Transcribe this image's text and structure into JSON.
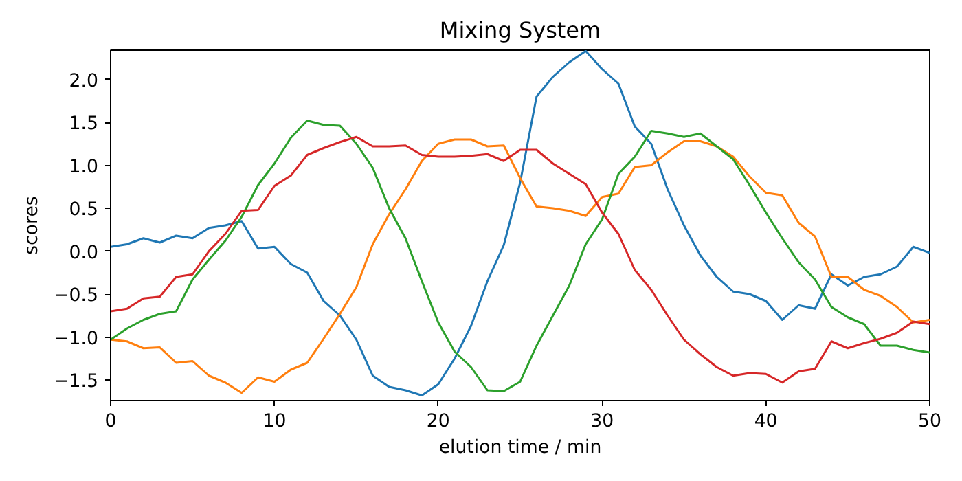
{
  "chart_data": {
    "type": "line",
    "title": "Mixing System",
    "xlabel": "elution time / min",
    "ylabel": "scores",
    "x": [
      0,
      1,
      2,
      3,
      4,
      5,
      6,
      7,
      8,
      9,
      10,
      11,
      12,
      13,
      14,
      15,
      16,
      17,
      18,
      19,
      20,
      21,
      22,
      23,
      24,
      25,
      26,
      27,
      28,
      29,
      30,
      31,
      32,
      33,
      34,
      35,
      36,
      37,
      38,
      39,
      40,
      41,
      42,
      43,
      44,
      45,
      46,
      47,
      48,
      49,
      50
    ],
    "series": [
      {
        "color": "#1f77b4",
        "values": [
          0.05,
          0.08,
          0.15,
          0.1,
          0.18,
          0.15,
          0.27,
          0.3,
          0.35,
          0.03,
          0.05,
          -0.15,
          -0.25,
          -0.58,
          -0.75,
          -1.03,
          -1.45,
          -1.58,
          -1.62,
          -1.68,
          -1.55,
          -1.25,
          -0.87,
          -0.35,
          0.07,
          0.8,
          1.8,
          2.03,
          2.2,
          2.33,
          2.12,
          1.95,
          1.45,
          1.25,
          0.72,
          0.3,
          -0.05,
          -0.3,
          -0.47,
          -0.5,
          -0.58,
          -0.8,
          -0.63,
          -0.67,
          -0.27,
          -0.4,
          -0.3,
          -0.27,
          -0.18,
          0.05,
          -0.02
        ]
      },
      {
        "color": "#ff7f0e",
        "values": [
          -1.03,
          -1.05,
          -1.13,
          -1.12,
          -1.3,
          -1.28,
          -1.45,
          -1.53,
          -1.65,
          -1.47,
          -1.52,
          -1.38,
          -1.3,
          -1.02,
          -0.73,
          -0.42,
          0.08,
          0.43,
          0.72,
          1.05,
          1.25,
          1.3,
          1.3,
          1.22,
          1.23,
          0.85,
          0.52,
          0.5,
          0.47,
          0.41,
          0.63,
          0.67,
          0.98,
          1.0,
          1.15,
          1.28,
          1.28,
          1.22,
          1.1,
          0.87,
          0.68,
          0.65,
          0.33,
          0.17,
          -0.3,
          -0.3,
          -0.45,
          -0.52,
          -0.65,
          -0.83,
          -0.8
        ]
      },
      {
        "color": "#2ca02c",
        "values": [
          -1.03,
          -0.9,
          -0.8,
          -0.73,
          -0.7,
          -0.33,
          -0.1,
          0.12,
          0.4,
          0.77,
          1.02,
          1.32,
          1.52,
          1.47,
          1.46,
          1.25,
          0.97,
          0.5,
          0.15,
          -0.35,
          -0.83,
          -1.17,
          -1.35,
          -1.62,
          -1.63,
          -1.52,
          -1.1,
          -0.75,
          -0.4,
          0.08,
          0.37,
          0.9,
          1.1,
          1.4,
          1.37,
          1.33,
          1.37,
          1.22,
          1.07,
          0.77,
          0.45,
          0.15,
          -0.13,
          -0.33,
          -0.65,
          -0.77,
          -0.85,
          -1.1,
          -1.1,
          -1.15,
          -1.18
        ]
      },
      {
        "color": "#d62728",
        "values": [
          -0.7,
          -0.67,
          -0.55,
          -0.53,
          -0.3,
          -0.27,
          0.0,
          0.2,
          0.47,
          0.48,
          0.76,
          0.88,
          1.12,
          1.2,
          1.27,
          1.33,
          1.22,
          1.22,
          1.23,
          1.12,
          1.1,
          1.1,
          1.11,
          1.13,
          1.05,
          1.18,
          1.18,
          1.02,
          0.9,
          0.78,
          0.45,
          0.2,
          -0.22,
          -0.45,
          -0.75,
          -1.03,
          -1.2,
          -1.35,
          -1.45,
          -1.42,
          -1.43,
          -1.53,
          -1.4,
          -1.37,
          -1.05,
          -1.13,
          -1.07,
          -1.02,
          -0.95,
          -0.82,
          -0.85
        ]
      }
    ],
    "xlim": [
      0,
      50
    ],
    "ylim": [
      -1.74,
      2.34
    ],
    "xticks": [
      0,
      10,
      20,
      30,
      40,
      50
    ],
    "yticks": [
      {
        "value": -1.5,
        "label": "−1.5"
      },
      {
        "value": -1.0,
        "label": "−1.0"
      },
      {
        "value": -0.5,
        "label": "−0.5"
      },
      {
        "value": 0.0,
        "label": "0.0"
      },
      {
        "value": 0.5,
        "label": "0.5"
      },
      {
        "value": 1.0,
        "label": "1.0"
      },
      {
        "value": 1.5,
        "label": "1.5"
      },
      {
        "value": 2.0,
        "label": "2.0"
      }
    ],
    "grid": false,
    "marker": "none",
    "line_style": "solid"
  }
}
